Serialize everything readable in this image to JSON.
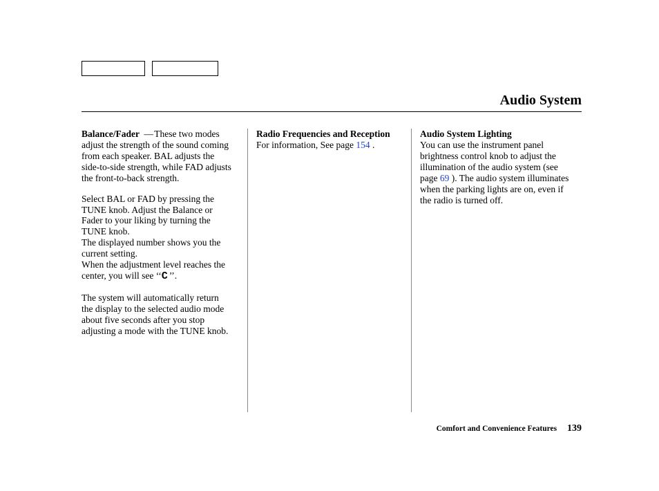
{
  "page": {
    "title": "Audio System",
    "footer_section": "Comfort and Convenience Features",
    "page_number": "139"
  },
  "col1": {
    "h1_label": "Balance/Fader",
    "h1_dash": " — ",
    "h1_text": "These two modes adjust the strength of the sound coming from each speaker. BAL adjusts the side-to-side strength, while FAD adjusts the front-to-back strength.",
    "p2": "Select BAL or FAD by pressing the TUNE knob. Adjust the Balance or Fader to your liking by turning the TUNE knob.",
    "p3": "The displayed number shows you the current setting.",
    "p4a": "When the adjustment level reaches the center, you will see ‘‘",
    "center_glyph": "C",
    "p4b": "’’.",
    "p5": "The system will automatically return the display to the selected audio mode about five seconds after you stop adjusting a mode with the TUNE knob."
  },
  "col2": {
    "h": "Radio Frequencies and Reception",
    "p1a": "For information, See page ",
    "link1": "154",
    "p1b": " ."
  },
  "col3": {
    "h": "Audio System Lighting",
    "p1a": "You can use the instrument panel brightness control knob to adjust the illumination of the audio system (see page ",
    "link1": "69",
    "p1b": " ). The audio system illuminates when the parking lights are on, even if the radio is turned off."
  },
  "links": {
    "color": "#1a3fd6"
  }
}
